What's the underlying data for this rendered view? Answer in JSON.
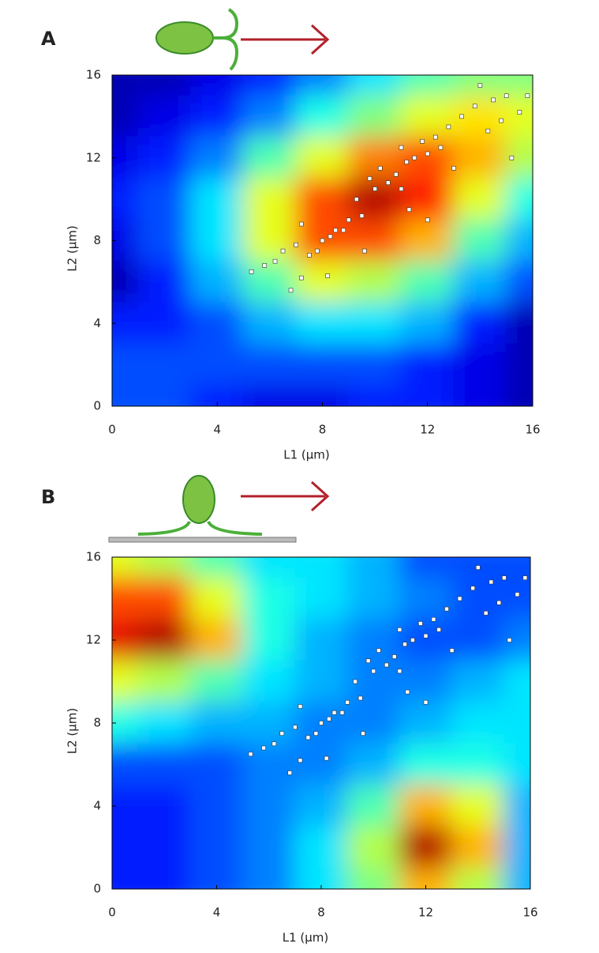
{
  "chart_data": [
    {
      "type": "contour",
      "panel": "A",
      "xlabel": "L1 (μm)",
      "ylabel": "L2 (μm)",
      "xlim": [
        0,
        16
      ],
      "ylim": [
        0,
        16
      ],
      "xticks": [
        0,
        4,
        8,
        12,
        16
      ],
      "yticks": [
        0,
        4,
        8,
        12,
        16
      ],
      "grid_x": [
        0,
        2,
        4,
        6,
        8,
        10,
        12,
        14,
        16
      ],
      "grid_y": [
        16,
        14,
        12,
        10,
        8,
        6,
        4,
        2,
        0
      ],
      "z": [
        [
          0.05,
          0.05,
          0.1,
          0.15,
          0.25,
          0.35,
          0.45,
          0.5,
          0.5
        ],
        [
          0.05,
          0.1,
          0.15,
          0.25,
          0.4,
          0.5,
          0.6,
          0.65,
          0.6
        ],
        [
          0.1,
          0.15,
          0.25,
          0.45,
          0.6,
          0.75,
          0.8,
          0.7,
          0.55
        ],
        [
          0.15,
          0.2,
          0.35,
          0.6,
          0.8,
          0.95,
          0.85,
          0.6,
          0.4
        ],
        [
          0.1,
          0.2,
          0.35,
          0.6,
          0.8,
          0.8,
          0.7,
          0.45,
          0.3
        ],
        [
          0.05,
          0.15,
          0.3,
          0.45,
          0.6,
          0.55,
          0.45,
          0.3,
          0.2
        ],
        [
          0.15,
          0.15,
          0.2,
          0.3,
          0.35,
          0.35,
          0.3,
          0.15,
          0.05
        ],
        [
          0.2,
          0.2,
          0.2,
          0.2,
          0.2,
          0.2,
          0.15,
          0.1,
          0.05
        ],
        [
          0.2,
          0.2,
          0.15,
          0.1,
          0.1,
          0.15,
          0.15,
          0.1,
          0.05
        ]
      ],
      "series": [
        {
          "color": "#ffffff",
          "x": [
            5.3,
            5.8,
            6.2,
            6.5,
            7,
            7.2,
            7.5,
            7.8,
            8,
            8.3,
            8.5,
            8.8,
            9,
            9.3,
            9.5,
            9.8,
            10,
            10.2,
            10.5,
            10.8,
            11,
            11,
            11.2,
            11.5,
            11.8,
            12,
            12,
            12.3,
            12.5,
            12.8,
            13,
            13.3,
            13.8,
            14,
            14.3,
            14.5,
            14.8,
            15,
            15.2,
            15.5,
            15.8,
            7.2,
            6.8,
            8.2,
            9.6,
            11.3
          ],
          "values": [
            6.5,
            6.8,
            7,
            7.5,
            7.8,
            8.8,
            7.3,
            7.5,
            8,
            8.2,
            8.5,
            8.5,
            9,
            10,
            9.2,
            11,
            10.5,
            11.5,
            10.8,
            11.2,
            12.5,
            10.5,
            11.8,
            12,
            12.8,
            12.2,
            9,
            13,
            12.5,
            13.5,
            11.5,
            14,
            14.5,
            15.5,
            13.3,
            14.8,
            13.8,
            15,
            12,
            14.2,
            15,
            6.2,
            5.6,
            6.3,
            7.5,
            9.5
          ]
        }
      ]
    },
    {
      "type": "contour",
      "panel": "B",
      "xlabel": "L1 (μm)",
      "ylabel": "L2 (μm)",
      "xlim": [
        0,
        16
      ],
      "ylim": [
        0,
        16
      ],
      "xticks": [
        0,
        4,
        8,
        12,
        16
      ],
      "yticks": [
        0,
        4,
        8,
        12,
        16
      ],
      "grid_x": [
        0,
        2,
        4,
        6,
        8,
        10,
        12,
        14,
        16
      ],
      "grid_y": [
        16,
        14,
        12,
        10,
        8,
        6,
        4,
        2,
        0
      ],
      "z": [
        [
          0.6,
          0.55,
          0.45,
          0.35,
          0.35,
          0.3,
          0.2,
          0.2,
          0.2
        ],
        [
          0.8,
          0.8,
          0.6,
          0.4,
          0.35,
          0.3,
          0.25,
          0.2,
          0.2
        ],
        [
          0.9,
          0.95,
          0.7,
          0.4,
          0.3,
          0.25,
          0.2,
          0.2,
          0.25
        ],
        [
          0.6,
          0.55,
          0.45,
          0.35,
          0.3,
          0.25,
          0.25,
          0.3,
          0.35
        ],
        [
          0.4,
          0.35,
          0.3,
          0.3,
          0.25,
          0.25,
          0.3,
          0.35,
          0.35
        ],
        [
          0.2,
          0.2,
          0.2,
          0.25,
          0.25,
          0.3,
          0.4,
          0.4,
          0.35
        ],
        [
          0.15,
          0.15,
          0.2,
          0.25,
          0.3,
          0.45,
          0.7,
          0.6,
          0.3
        ],
        [
          0.15,
          0.15,
          0.2,
          0.25,
          0.35,
          0.55,
          0.95,
          0.7,
          0.3
        ],
        [
          0.15,
          0.15,
          0.2,
          0.25,
          0.35,
          0.5,
          0.7,
          0.55,
          0.3
        ]
      ],
      "series": [
        {
          "color": "#ffffff",
          "x": [
            5.3,
            5.8,
            6.2,
            6.5,
            7,
            7.2,
            7.5,
            7.8,
            8,
            8.3,
            8.5,
            8.8,
            9,
            9.3,
            9.5,
            9.8,
            10,
            10.2,
            10.5,
            10.8,
            11,
            11,
            11.2,
            11.5,
            11.8,
            12,
            12,
            12.3,
            12.5,
            12.8,
            13,
            13.3,
            13.8,
            14,
            14.3,
            14.5,
            14.8,
            15,
            15.2,
            15.5,
            15.8,
            7.2,
            6.8,
            8.2,
            9.6,
            11.3
          ],
          "values": [
            6.5,
            6.8,
            7,
            7.5,
            7.8,
            8.8,
            7.3,
            7.5,
            8,
            8.2,
            8.5,
            8.5,
            9,
            10,
            9.2,
            11,
            10.5,
            11.5,
            10.8,
            11.2,
            12.5,
            10.5,
            11.8,
            12,
            12.8,
            12.2,
            9,
            13,
            12.5,
            13.5,
            11.5,
            14,
            14.5,
            15.5,
            13.3,
            14.8,
            13.8,
            15,
            12,
            14.2,
            15,
            6.2,
            5.6,
            6.3,
            7.5,
            9.5
          ]
        }
      ]
    }
  ]
}
